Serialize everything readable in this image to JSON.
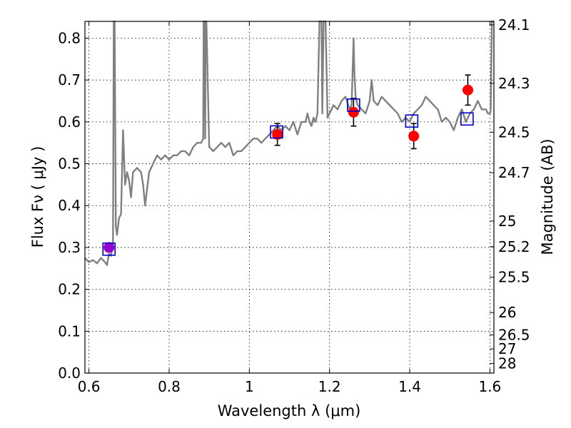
{
  "chart_data": {
    "type": "line",
    "xlabel": "Wavelength  λ (μm)",
    "ylabel": "Flux  Fν  ( μJy )",
    "y2label": "Magnitude (AB)",
    "xlim": [
      0.59,
      1.61
    ],
    "ylim": [
      0.0,
      0.84
    ],
    "grid": true,
    "x_ticks": [
      0.6,
      0.8,
      1.0,
      1.2,
      1.4,
      1.6
    ],
    "x_tick_labels": [
      "0.6",
      "0.8",
      "1",
      "1.2",
      "1.4",
      "1.6"
    ],
    "y_ticks": [
      0.0,
      0.1,
      0.2,
      0.3,
      0.4,
      0.5,
      0.6,
      0.7,
      0.8
    ],
    "y_tick_labels": [
      "0.0",
      "0.1",
      "0.2",
      "0.3",
      "0.4",
      "0.5",
      "0.6",
      "0.7",
      "0.8"
    ],
    "y2_ticks": [
      24.1,
      24.3,
      24.5,
      24.7,
      25,
      25.2,
      25.5,
      26,
      26.5,
      27,
      28
    ],
    "y2_tick_labels": [
      "24.1",
      "24.3",
      "24.5",
      "24.7",
      "25",
      "25.2",
      "25.5",
      "26",
      "26.5",
      "27",
      "28"
    ],
    "colors": {
      "model": "#808080",
      "observed": "#ff0000",
      "synthetic": "#0000cc",
      "error": "#000000",
      "overlap": "#9900cc"
    },
    "series": [
      {
        "kind": "model-spectrum",
        "x": [
          0.59,
          0.6,
          0.61,
          0.62,
          0.63,
          0.64,
          0.645,
          0.65,
          0.655,
          0.658,
          0.66,
          0.662,
          0.664,
          0.667,
          0.67,
          0.675,
          0.68,
          0.685,
          0.69,
          0.695,
          0.7,
          0.705,
          0.71,
          0.72,
          0.73,
          0.735,
          0.74,
          0.745,
          0.75,
          0.76,
          0.77,
          0.78,
          0.79,
          0.8,
          0.81,
          0.82,
          0.83,
          0.84,
          0.85,
          0.86,
          0.87,
          0.88,
          0.885,
          0.886,
          0.888,
          0.89,
          0.891,
          0.893,
          0.9,
          0.91,
          0.92,
          0.93,
          0.94,
          0.95,
          0.96,
          0.97,
          0.98,
          0.99,
          1.0,
          1.01,
          1.02,
          1.03,
          1.04,
          1.05,
          1.06,
          1.07,
          1.08,
          1.09,
          1.1,
          1.11,
          1.12,
          1.13,
          1.14,
          1.145,
          1.15,
          1.155,
          1.16,
          1.165,
          1.17,
          1.175,
          1.18,
          1.182,
          1.185,
          1.19,
          1.195,
          1.2,
          1.205,
          1.21,
          1.22,
          1.23,
          1.24,
          1.25,
          1.255,
          1.26,
          1.262,
          1.265,
          1.27,
          1.28,
          1.29,
          1.3,
          1.305,
          1.31,
          1.32,
          1.33,
          1.34,
          1.35,
          1.36,
          1.37,
          1.38,
          1.39,
          1.4,
          1.41,
          1.42,
          1.43,
          1.44,
          1.45,
          1.46,
          1.47,
          1.48,
          1.49,
          1.5,
          1.51,
          1.52,
          1.53,
          1.54,
          1.55,
          1.56,
          1.57,
          1.58,
          1.59,
          1.595,
          1.6,
          1.602,
          1.605,
          1.61
        ],
        "y": [
          0.275,
          0.265,
          0.27,
          0.262,
          0.275,
          0.265,
          0.258,
          0.285,
          0.28,
          0.3,
          0.3,
          0.9,
          0.9,
          0.35,
          0.33,
          0.37,
          0.38,
          0.58,
          0.45,
          0.48,
          0.46,
          0.42,
          0.48,
          0.49,
          0.48,
          0.45,
          0.4,
          0.44,
          0.48,
          0.5,
          0.52,
          0.51,
          0.52,
          0.51,
          0.52,
          0.52,
          0.53,
          0.53,
          0.52,
          0.54,
          0.55,
          0.55,
          0.56,
          0.9,
          0.9,
          0.56,
          0.9,
          0.9,
          0.54,
          0.53,
          0.54,
          0.55,
          0.54,
          0.55,
          0.52,
          0.53,
          0.53,
          0.54,
          0.55,
          0.56,
          0.56,
          0.55,
          0.56,
          0.57,
          0.58,
          0.59,
          0.58,
          0.59,
          0.58,
          0.6,
          0.57,
          0.6,
          0.6,
          0.62,
          0.6,
          0.59,
          0.61,
          0.6,
          0.62,
          0.9,
          0.9,
          0.62,
          0.9,
          0.9,
          0.61,
          0.62,
          0.63,
          0.64,
          0.63,
          0.65,
          0.66,
          0.63,
          0.64,
          0.8,
          0.72,
          0.66,
          0.64,
          0.63,
          0.62,
          0.65,
          0.7,
          0.65,
          0.64,
          0.66,
          0.65,
          0.64,
          0.63,
          0.62,
          0.6,
          0.61,
          0.6,
          0.62,
          0.63,
          0.64,
          0.66,
          0.65,
          0.64,
          0.63,
          0.6,
          0.61,
          0.6,
          0.58,
          0.61,
          0.63,
          0.6,
          0.62,
          0.63,
          0.65,
          0.63,
          0.63,
          0.62,
          0.62,
          0.63,
          0.9,
          0.9
        ]
      },
      {
        "kind": "observed-photometry",
        "points": [
          {
            "x": 0.65,
            "y": 0.3,
            "err": 0.01
          },
          {
            "x": 1.07,
            "y": 0.57,
            "err": 0.026
          },
          {
            "x": 1.26,
            "y": 0.623,
            "err": 0.033
          },
          {
            "x": 1.41,
            "y": 0.566,
            "err": 0.03
          },
          {
            "x": 1.545,
            "y": 0.676,
            "err": 0.036
          }
        ]
      },
      {
        "kind": "model-photometry",
        "points": [
          {
            "x": 0.65,
            "y": 0.296
          },
          {
            "x": 1.068,
            "y": 0.576
          },
          {
            "x": 1.26,
            "y": 0.64
          },
          {
            "x": 1.405,
            "y": 0.602
          },
          {
            "x": 1.543,
            "y": 0.607
          }
        ]
      }
    ]
  }
}
